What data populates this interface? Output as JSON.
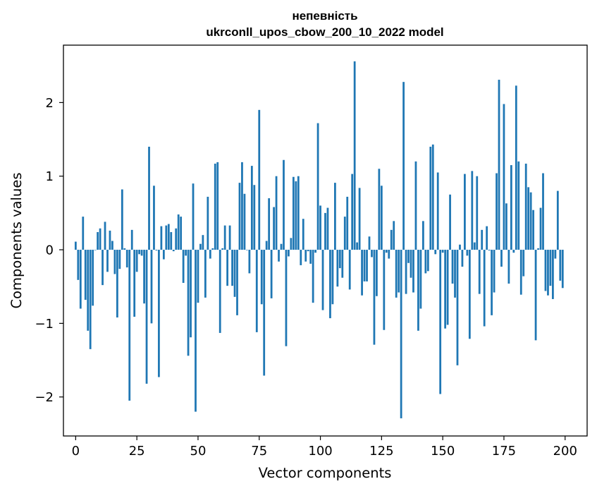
{
  "chart_data": {
    "type": "bar",
    "title": "непевність",
    "subtitle": "ukrconll_upos_cbow_200_10_2022 model",
    "xlabel": "Vector components",
    "ylabel": "Components values",
    "xlim": [
      -5,
      209
    ],
    "ylim": [
      -2.53,
      2.78
    ],
    "xticks": [
      0,
      25,
      50,
      75,
      100,
      125,
      150,
      175,
      200
    ],
    "yticks": [
      -2,
      -1,
      0,
      1,
      2
    ],
    "ytick_labels": [
      "−2",
      "−1",
      "0",
      "1",
      "2"
    ],
    "bar_color": "#1f77b4",
    "grid": false,
    "values": [
      0.11,
      -0.41,
      -0.8,
      0.45,
      -0.68,
      -1.1,
      -1.35,
      -0.76,
      -0.0,
      0.24,
      0.29,
      -0.48,
      0.38,
      -0.3,
      0.26,
      0.12,
      -0.33,
      -0.92,
      -0.26,
      0.82,
      0.02,
      -0.24,
      -2.05,
      0.27,
      -0.91,
      -0.3,
      -0.06,
      -0.08,
      -0.73,
      -1.82,
      1.4,
      -1.0,
      0.87,
      -0.01,
      -1.73,
      0.32,
      -0.13,
      0.33,
      0.35,
      0.24,
      -0.02,
      0.29,
      0.48,
      0.45,
      -0.45,
      -0.08,
      -1.44,
      -1.19,
      0.9,
      -2.2,
      -0.72,
      0.08,
      0.2,
      -0.65,
      0.72,
      -0.12,
      0.02,
      1.17,
      1.19,
      -1.13,
      0.02,
      0.33,
      -0.49,
      0.33,
      -0.49,
      -0.64,
      -0.89,
      0.91,
      1.19,
      0.76,
      0.0,
      -0.32,
      1.14,
      0.88,
      -1.12,
      1.9,
      -0.74,
      -1.71,
      0.12,
      0.7,
      -0.66,
      0.58,
      1.0,
      -0.16,
      0.08,
      1.22,
      -1.31,
      -0.09,
      0.16,
      0.99,
      0.93,
      1.0,
      -0.21,
      0.42,
      -0.16,
      -0.02,
      -0.19,
      -0.72,
      -0.04,
      1.72,
      0.6,
      -0.82,
      0.5,
      0.57,
      -0.93,
      -0.74,
      0.91,
      -0.5,
      -0.25,
      -0.38,
      0.45,
      0.72,
      -0.54,
      1.03,
      2.56,
      0.1,
      0.84,
      -0.62,
      -0.43,
      -0.43,
      0.18,
      -0.1,
      -1.29,
      -0.63,
      1.1,
      0.87,
      -1.09,
      -0.04,
      -0.12,
      0.27,
      0.39,
      -0.65,
      -0.58,
      -2.29,
      2.28,
      -0.6,
      -0.18,
      -0.38,
      -0.58,
      1.2,
      -1.1,
      -0.8,
      0.39,
      -0.32,
      -0.29,
      1.4,
      1.43,
      -0.06,
      1.05,
      -1.96,
      -0.04,
      -1.07,
      -1.02,
      0.75,
      -0.46,
      -0.65,
      -1.57,
      0.07,
      -0.23,
      1.03,
      -0.08,
      -1.21,
      1.07,
      0.1,
      1.0,
      -0.6,
      0.27,
      -1.04,
      0.32,
      -0.01,
      -0.89,
      -0.58,
      1.04,
      2.31,
      -0.23,
      1.98,
      0.63,
      -0.46,
      1.15,
      -0.04,
      2.23,
      1.2,
      -0.61,
      -0.36,
      1.17,
      0.85,
      0.78,
      0.54,
      -1.23,
      0.02,
      0.57,
      1.04,
      -0.56,
      -0.62,
      -0.49,
      -0.67,
      -0.12,
      0.8,
      -0.42,
      -0.52
    ]
  }
}
